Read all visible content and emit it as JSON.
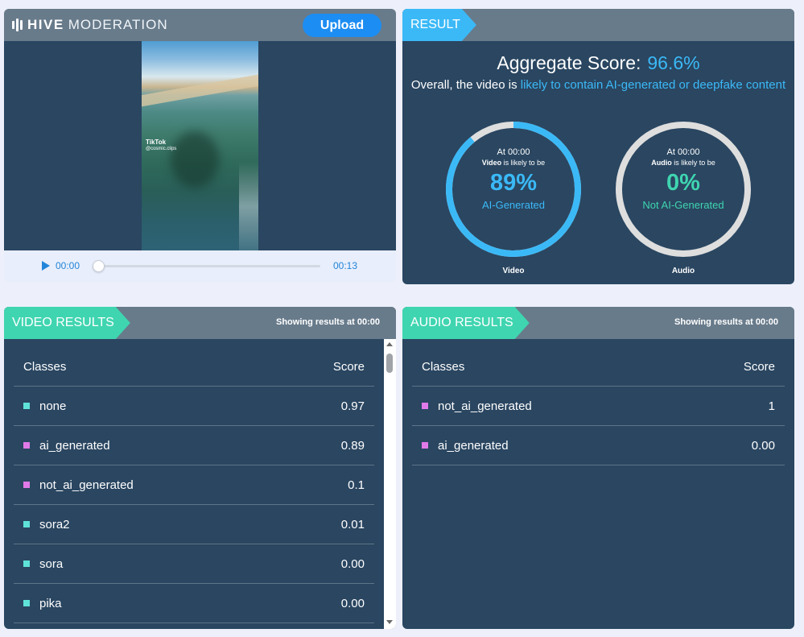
{
  "brand": {
    "word1": "HIVE",
    "word2": "MODERATION"
  },
  "uploader": {
    "upload_label": "Upload",
    "watermark": "TikTok",
    "watermark_handle": "@cosmic.clips",
    "current_time": "00:00",
    "duration": "00:13",
    "playback_progress": 0.0
  },
  "result": {
    "ribbon": "RESULT",
    "aggregate_label": "Aggregate Score:",
    "aggregate_value": "96.6%",
    "overall_prefix": "Overall, the video is",
    "overall_highlight": "likely to contain AI-generated or deepfake content",
    "gauges": [
      {
        "at": "At 00:00",
        "subject": "Video",
        "likely": "is likely to be",
        "percent": "89%",
        "fraction": 0.89,
        "verdict": "AI-Generated",
        "caption": "Video",
        "color": "#3bb9f7",
        "text_color": "#3bb9f7"
      },
      {
        "at": "At 00:00",
        "subject": "Audio",
        "likely": "is likely to be",
        "percent": "0%",
        "fraction": 0.0,
        "verdict": "Not AI-Generated",
        "caption": "Audio",
        "color": "#3bb9f7",
        "text_color": "#3fd5b0"
      }
    ]
  },
  "video_results": {
    "ribbon": "VIDEO RESULTS",
    "showing_prefix": "Showing results at",
    "showing_time": "00:00",
    "col_class": "Classes",
    "col_score": "Score",
    "rows": [
      {
        "label": "none",
        "score": "0.97",
        "color": "#5fe3d8"
      },
      {
        "label": "ai_generated",
        "score": "0.89",
        "color": "#e07ae8"
      },
      {
        "label": "not_ai_generated",
        "score": "0.1",
        "color": "#e07ae8"
      },
      {
        "label": "sora2",
        "score": "0.01",
        "color": "#5fe3d8"
      },
      {
        "label": "sora",
        "score": "0.00",
        "color": "#5fe3d8"
      },
      {
        "label": "pika",
        "score": "0.00",
        "color": "#5fe3d8"
      }
    ]
  },
  "audio_results": {
    "ribbon": "AUDIO RESULTS",
    "showing_prefix": "Showing results at",
    "showing_time": "00:00",
    "col_class": "Classes",
    "col_score": "Score",
    "rows": [
      {
        "label": "not_ai_generated",
        "score": "1",
        "color": "#e07ae8"
      },
      {
        "label": "ai_generated",
        "score": "0.00",
        "color": "#e07ae8"
      }
    ]
  },
  "colors": {
    "panel": "#2a4661",
    "header": "#687b8b",
    "accent_blue": "#3bb9f7",
    "accent_green": "#3fd5b0",
    "upload_button": "#1c8df2"
  }
}
